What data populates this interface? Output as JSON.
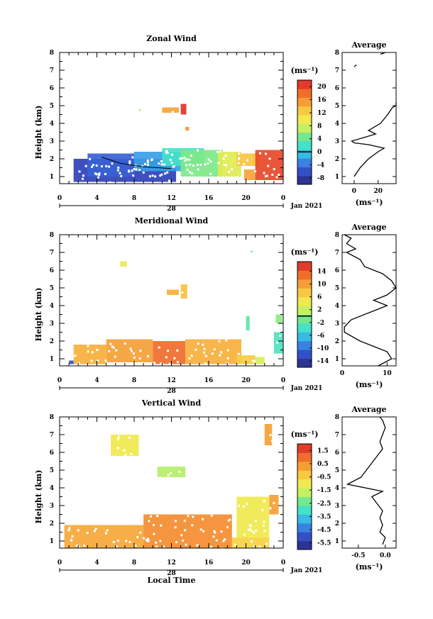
{
  "figure": {
    "x_axis_label": "Local Time",
    "date_center_label": "28",
    "date_right_label": "Jan 2021",
    "y_axis_label": "Height (km)",
    "unit_label": "(ms⁻¹)",
    "x_ticks": [
      "0",
      "4",
      "8",
      "12",
      "16",
      "20",
      "0"
    ],
    "y_ticks": [
      "1",
      "2",
      "3",
      "4",
      "5",
      "6",
      "7",
      "8"
    ]
  },
  "chart_data": [
    {
      "type": "heatmap",
      "title": "Zonal Wind",
      "xlabel": "",
      "ylabel": "Height (km)",
      "xlim": [
        0,
        24
      ],
      "ylim": [
        0.6,
        8.0
      ],
      "colorbar": {
        "ticks": [
          "20",
          "16",
          "12",
          "8",
          "4",
          "0",
          "-4",
          "-8"
        ],
        "values": [
          20,
          16,
          12,
          8,
          4,
          0,
          -4,
          -8
        ],
        "min": -10,
        "max": 22,
        "marker_line_value": 0
      },
      "regions": [
        {
          "t": [
            1.5,
            12.5
          ],
          "h": [
            0.7,
            2.0
          ],
          "value": -7
        },
        {
          "t": [
            3.0,
            8.0
          ],
          "h": [
            1.0,
            2.3
          ],
          "value": -5
        },
        {
          "t": [
            8.0,
            13.5
          ],
          "h": [
            1.3,
            2.4
          ],
          "value": -2
        },
        {
          "t": [
            11.0,
            15.5
          ],
          "h": [
            1.6,
            2.6
          ],
          "value": 2
        },
        {
          "t": [
            13.0,
            17.5
          ],
          "h": [
            1.0,
            2.5
          ],
          "value": 5
        },
        {
          "t": [
            17.0,
            19.5
          ],
          "h": [
            1.0,
            2.4
          ],
          "value": 9
        },
        {
          "t": [
            19.0,
            21.5
          ],
          "h": [
            1.6,
            2.3
          ],
          "value": 13
        },
        {
          "t": [
            19.8,
            21.0
          ],
          "h": [
            0.8,
            1.4
          ],
          "value": 15
        },
        {
          "t": [
            21.0,
            24.0
          ],
          "h": [
            0.8,
            2.5
          ],
          "value": 20
        },
        {
          "t": [
            11.0,
            12.8
          ],
          "h": [
            4.6,
            4.9
          ],
          "value": 15
        },
        {
          "t": [
            13.0,
            13.6
          ],
          "h": [
            4.5,
            5.1
          ],
          "value": 21
        },
        {
          "t": [
            13.5,
            13.9
          ],
          "h": [
            3.6,
            3.8
          ],
          "value": 16
        },
        {
          "t": [
            8.5,
            8.7
          ],
          "h": [
            4.7,
            4.8
          ],
          "value": 6
        }
      ],
      "boundary_line": {
        "t": [
          4.5,
          6.5,
          9.0,
          12.0
        ],
        "h": [
          2.1,
          1.75,
          1.55,
          1.45
        ]
      },
      "profile": {
        "title": "Average",
        "xlabel": "(ms⁻¹)",
        "xticks": [
          "0",
          "20"
        ],
        "xlim": [
          -10,
          35
        ],
        "height": [
          1.0,
          1.5,
          2.0,
          2.4,
          2.6,
          2.8,
          2.9,
          3.0,
          3.4,
          3.6,
          4.0,
          4.5,
          4.9,
          5.0,
          5.2
        ],
        "value": [
          0,
          5,
          12,
          20,
          25,
          12,
          0,
          -2,
          18,
          12,
          22,
          28,
          32,
          35,
          35
        ],
        "extra_segments": [
          {
            "height": [
              7.2,
              7.3
            ],
            "value": [
              0,
              2
            ]
          },
          {
            "height": [
              7.9,
              8.0
            ],
            "value": [
              22,
              26
            ]
          }
        ]
      }
    },
    {
      "type": "heatmap",
      "title": "Meridional Wind",
      "xlabel": "",
      "ylabel": "Height (km)",
      "xlim": [
        0,
        24
      ],
      "ylim": [
        0.6,
        8.0
      ],
      "colorbar": {
        "ticks": [
          "14",
          "10",
          "6",
          "2",
          "-2",
          "-6",
          "-10",
          "-14"
        ],
        "values": [
          14,
          10,
          6,
          2,
          -2,
          -6,
          -10,
          -14
        ],
        "min": -16,
        "max": 17,
        "marker_line_value": 0
      },
      "regions": [
        {
          "t": [
            1.5,
            5.0
          ],
          "h": [
            0.7,
            1.8
          ],
          "value": 9
        },
        {
          "t": [
            5.0,
            10.0
          ],
          "h": [
            0.8,
            2.1
          ],
          "value": 10
        },
        {
          "t": [
            10.0,
            13.5
          ],
          "h": [
            0.7,
            2.0
          ],
          "value": 13
        },
        {
          "t": [
            13.5,
            19.5
          ],
          "h": [
            0.7,
            2.1
          ],
          "value": 9
        },
        {
          "t": [
            19.0,
            21.0
          ],
          "h": [
            0.7,
            1.2
          ],
          "value": 7
        },
        {
          "t": [
            21.0,
            22.0
          ],
          "h": [
            0.7,
            1.1
          ],
          "value": 3
        },
        {
          "t": [
            23.0,
            24.0
          ],
          "h": [
            1.3,
            2.5
          ],
          "value": -3
        },
        {
          "t": [
            1.0,
            1.5
          ],
          "h": [
            0.7,
            0.9
          ],
          "value": -12
        },
        {
          "t": [
            11.5,
            12.8
          ],
          "h": [
            4.6,
            4.9
          ],
          "value": 9
        },
        {
          "t": [
            13.0,
            13.7
          ],
          "h": [
            4.4,
            5.2
          ],
          "value": 8
        },
        {
          "t": [
            6.5,
            7.2
          ],
          "h": [
            6.2,
            6.5
          ],
          "value": 4
        },
        {
          "t": [
            20.0,
            20.4
          ],
          "h": [
            2.6,
            3.4
          ],
          "value": -2
        },
        {
          "t": [
            23.2,
            23.9
          ],
          "h": [
            3.0,
            3.5
          ],
          "value": 0
        },
        {
          "t": [
            20.5,
            20.7
          ],
          "h": [
            7.0,
            7.1
          ],
          "value": -2
        }
      ],
      "profile": {
        "title": "Average",
        "xlabel": "(ms⁻¹)",
        "xticks": [
          "0",
          "10"
        ],
        "xlim": [
          0,
          12
        ],
        "height": [
          0.6,
          1.0,
          1.4,
          1.7,
          2.0,
          2.5,
          2.8,
          3.2,
          3.6,
          4.0,
          4.3,
          4.6,
          5.0,
          5.4,
          5.8,
          6.2,
          6.6,
          7.0,
          7.2,
          7.5,
          7.8,
          8.0
        ],
        "value": [
          8,
          11,
          10,
          7,
          4,
          0.5,
          0.5,
          2,
          6,
          10,
          7,
          10,
          12,
          11,
          9,
          5,
          4,
          1,
          3,
          1,
          2,
          0.5
        ]
      }
    },
    {
      "type": "heatmap",
      "title": "Vertical Wind",
      "xlabel": "Local Time",
      "ylabel": "Height (km)",
      "xlim": [
        0,
        24
      ],
      "ylim": [
        0.6,
        8.0
      ],
      "colorbar": {
        "ticks": [
          "1.5",
          "0.5",
          "-0.5",
          "-1.5",
          "-2.5",
          "-3.5",
          "-4.5",
          "-5.5"
        ],
        "values": [
          1.5,
          0.5,
          -0.5,
          -1.5,
          -2.5,
          -3.5,
          -4.5,
          -5.5
        ],
        "min": -6,
        "max": 2,
        "marker_line_value": null
      },
      "regions": [
        {
          "t": [
            0.5,
            9.0
          ],
          "h": [
            0.6,
            1.9
          ],
          "value": 0.2
        },
        {
          "t": [
            9.0,
            18.5
          ],
          "h": [
            0.6,
            2.5
          ],
          "value": 0.6
        },
        {
          "t": [
            18.5,
            22.5
          ],
          "h": [
            0.6,
            1.2
          ],
          "value": -0.5
        },
        {
          "t": [
            19.0,
            22.5
          ],
          "h": [
            1.2,
            3.5
          ],
          "value": -1.0
        },
        {
          "t": [
            22.5,
            23.5
          ],
          "h": [
            2.5,
            3.6
          ],
          "value": 0.3
        },
        {
          "t": [
            5.5,
            8.5
          ],
          "h": [
            5.8,
            7.0
          ],
          "value": -1.0
        },
        {
          "t": [
            10.5,
            13.5
          ],
          "h": [
            4.6,
            5.2
          ],
          "value": -1.8
        },
        {
          "t": [
            22.0,
            22.8
          ],
          "h": [
            6.4,
            7.6
          ],
          "value": 0.3
        }
      ],
      "profile": {
        "title": "Average",
        "xlabel": "(ms⁻¹)",
        "xticks": [
          "-0.5",
          "0.0"
        ],
        "xlim": [
          -0.8,
          0.2
        ],
        "height": [
          0.8,
          1.2,
          1.5,
          1.9,
          2.3,
          2.7,
          3.1,
          3.5,
          3.8,
          4.2,
          4.6,
          5.0,
          5.4,
          5.8,
          6.2,
          6.6,
          7.0,
          7.4,
          7.8,
          8.0
        ],
        "value": [
          -0.05,
          0.0,
          -0.1,
          -0.05,
          -0.1,
          -0.05,
          -0.15,
          -0.25,
          -0.05,
          -0.7,
          -0.45,
          -0.35,
          -0.25,
          -0.15,
          -0.05,
          -0.1,
          -0.05,
          0.0,
          -0.05,
          -0.1
        ]
      }
    }
  ]
}
